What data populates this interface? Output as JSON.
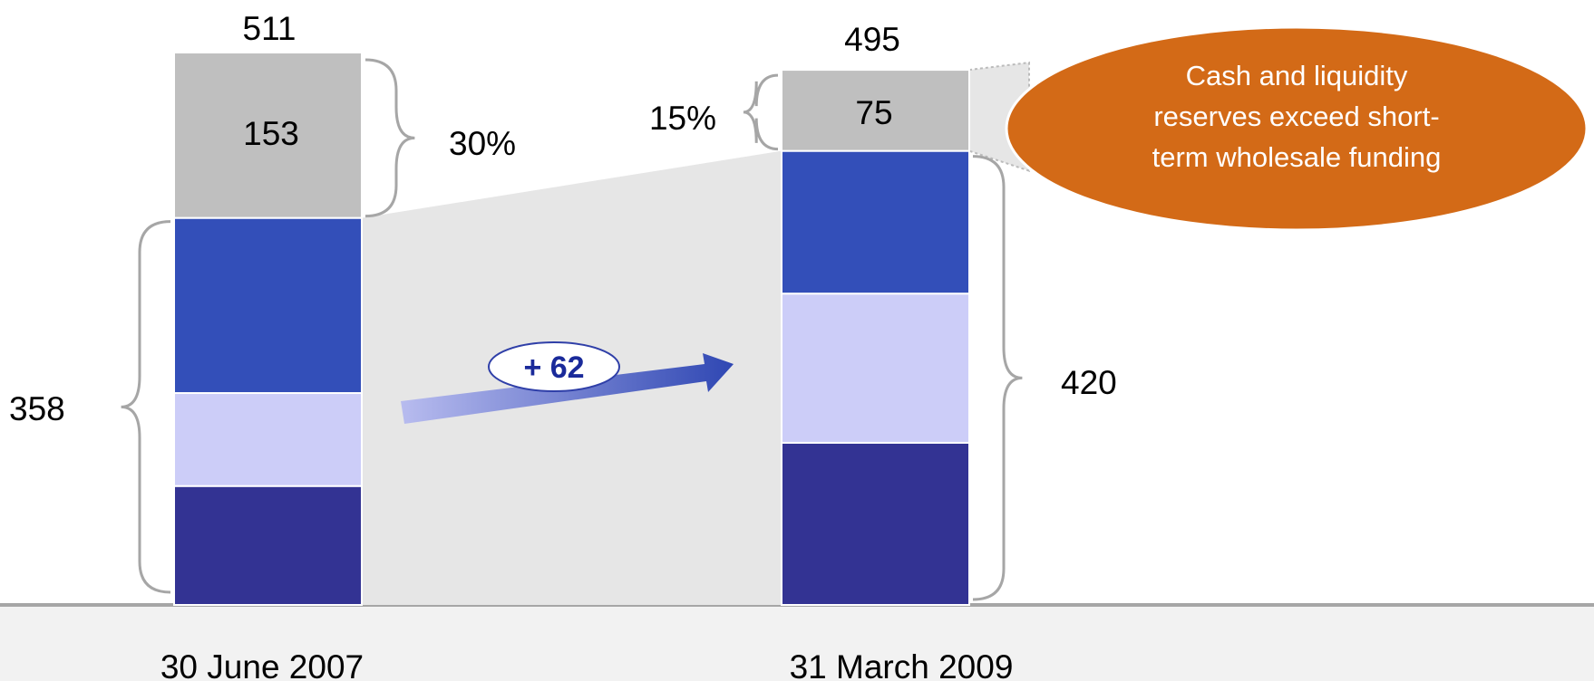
{
  "colors": {
    "cash_and_liquidity": "#bfbfbf",
    "funding_top": "#334fb9",
    "funding_mid": "#cccdf8",
    "funding_bottom": "#333393",
    "callout": "#d36a17",
    "connector": "#e6e6e6",
    "baseline": "#a6a6a6",
    "brace": "#a6a6a6"
  },
  "chart_data": {
    "type": "bar",
    "stacked": true,
    "categories": [
      "30 June 2007",
      "31 March 2009"
    ],
    "totals": [
      511,
      495
    ],
    "series": [
      {
        "key": "bottom",
        "color": "#333393",
        "values": [
          110,
          150
        ]
      },
      {
        "key": "middle",
        "color": "#cccdf8",
        "values": [
          86,
          138
        ]
      },
      {
        "key": "upper",
        "color": "#334fb9",
        "values": [
          162,
          132
        ]
      },
      {
        "key": "top",
        "color": "#bfbfbf",
        "values": [
          153,
          75
        ]
      }
    ],
    "segment_labels": [
      "153",
      "75"
    ],
    "top_share_labels": [
      "30%",
      "15%"
    ],
    "lower_group_labels": [
      "358",
      "420"
    ],
    "total_labels": [
      "511",
      "495"
    ],
    "change_label": "+ 62",
    "callout_lines": [
      "Cash and liquidity",
      "reserves exceed short-",
      "term wholesale funding"
    ],
    "grid": false,
    "legend": "none"
  }
}
